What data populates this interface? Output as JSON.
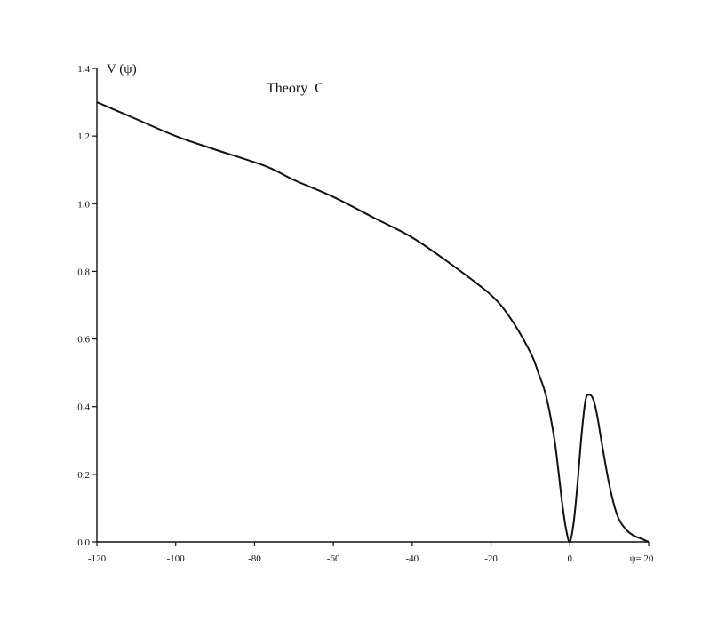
{
  "chart_data": {
    "type": "line",
    "title": "Theory  C",
    "xlabel": "",
    "ylabel": "V (ψ)",
    "xlim": [
      -120,
      20
    ],
    "ylim": [
      0,
      1.4
    ],
    "x_ticks": [
      {
        "value": -120,
        "label": "-120"
      },
      {
        "value": -100,
        "label": "-100"
      },
      {
        "value": -80,
        "label": "-80"
      },
      {
        "value": -60,
        "label": "-60"
      },
      {
        "value": -40,
        "label": "-40"
      },
      {
        "value": -20,
        "label": "-20"
      },
      {
        "value": 0,
        "label": "0"
      },
      {
        "value": 20,
        "label": "ψ= 20"
      }
    ],
    "y_ticks": [
      {
        "value": 0.0,
        "label": "0.0"
      },
      {
        "value": 0.2,
        "label": "0.2"
      },
      {
        "value": 0.4,
        "label": "0.4"
      },
      {
        "value": 0.6,
        "label": "0.6"
      },
      {
        "value": 0.8,
        "label": "0.8"
      },
      {
        "value": 1.0,
        "label": "1.0"
      },
      {
        "value": 1.2,
        "label": "1.2"
      },
      {
        "value": 1.4,
        "label": "1.4"
      }
    ],
    "grid": false,
    "series": [
      {
        "x": [
          -120,
          -110,
          -100,
          -90,
          -77,
          -70,
          -60,
          -50,
          -40,
          -30,
          -20,
          -15,
          -10,
          -8,
          -6,
          -4,
          -3,
          -2,
          -1,
          0,
          1,
          2,
          3,
          4,
          5,
          6,
          7,
          8,
          10,
          12,
          14,
          16,
          18,
          20
        ],
        "y": [
          1.3,
          1.25,
          1.2,
          1.16,
          1.11,
          1.07,
          1.02,
          0.96,
          0.9,
          0.82,
          0.73,
          0.66,
          0.56,
          0.5,
          0.43,
          0.31,
          0.22,
          0.12,
          0.04,
          0.0,
          0.06,
          0.18,
          0.32,
          0.42,
          0.435,
          0.42,
          0.37,
          0.3,
          0.17,
          0.08,
          0.04,
          0.02,
          0.01,
          0.0
        ]
      }
    ]
  }
}
